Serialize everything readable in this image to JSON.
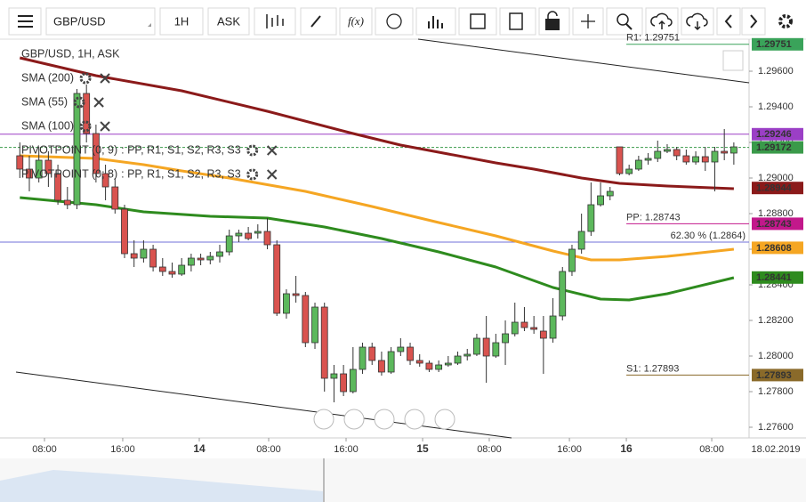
{
  "toolbar": {
    "symbol": "GBP/USD",
    "timeframe": "1H",
    "price_type": "ASK",
    "function": "f(x)"
  },
  "chart_data": {
    "type": "candlestick",
    "title": "GBP/USD, 1H, ASK",
    "open": [
      1.29125,
      1.2905,
      1.29,
      1.291,
      1.29025,
      1.28875,
      1.2885,
      1.29475,
      1.2925,
      1.29025,
      1.2895,
      1.28825,
      1.28575,
      1.2855,
      1.286,
      1.285,
      1.28475,
      1.2846,
      1.2851,
      1.2855,
      1.2854,
      1.2856,
      1.28585,
      1.28675,
      1.2869,
      1.2869,
      1.287,
      1.28625,
      1.2824,
      1.2835,
      1.2834,
      1.28075,
      1.28275,
      1.27875,
      1.279,
      1.278,
      1.27925,
      1.2805,
      1.27975,
      1.2791,
      1.28025,
      1.2805,
      1.27975,
      1.2796,
      1.27925,
      1.2795,
      1.2796,
      1.28,
      1.2801,
      1.281,
      1.28,
      1.28075,
      1.28125,
      1.2819,
      1.2816,
      1.2814,
      1.281,
      1.28225,
      1.28475,
      1.286,
      1.287,
      1.2885,
      1.289,
      1.29175,
      1.29025,
      1.2905,
      1.291,
      1.2911,
      1.2915,
      1.2916,
      1.29125,
      1.2909,
      1.2912,
      1.2909,
      1.2915,
      1.2914
    ],
    "high": [
      1.292,
      1.29125,
      1.29175,
      1.2915,
      1.29075,
      1.2895,
      1.295,
      1.29525,
      1.293,
      1.29075,
      1.29,
      1.2885,
      1.2865,
      1.2865,
      1.28625,
      1.2855,
      1.28525,
      1.2855,
      1.28575,
      1.28575,
      1.28585,
      1.28625,
      1.2871,
      1.2871,
      1.28725,
      1.2874,
      1.28775,
      1.2865,
      1.28375,
      1.2845,
      1.2836,
      1.283,
      1.283,
      1.2795,
      1.2795,
      1.2805,
      1.28075,
      1.28075,
      1.28025,
      1.2805,
      1.281,
      1.28075,
      1.2801,
      1.27975,
      1.27975,
      1.28,
      1.28025,
      1.2804,
      1.28125,
      1.28225,
      1.28125,
      1.282,
      1.283,
      1.28275,
      1.28225,
      1.28225,
      1.28325,
      1.285,
      1.28625,
      1.288,
      1.28975,
      1.28975,
      1.2895,
      1.29175,
      1.29075,
      1.29125,
      1.2914,
      1.2921,
      1.2919,
      1.29175,
      1.2916,
      1.2915,
      1.29175,
      1.29175,
      1.29275,
      1.292
    ],
    "low": [
      1.29,
      1.28925,
      1.28975,
      1.2895,
      1.2885,
      1.28825,
      1.28825,
      1.292,
      1.28975,
      1.28875,
      1.288,
      1.2855,
      1.285,
      1.28525,
      1.28475,
      1.2845,
      1.2844,
      1.2845,
      1.28475,
      1.2851,
      1.28515,
      1.28525,
      1.28565,
      1.2864,
      1.2865,
      1.2866,
      1.286,
      1.28225,
      1.2821,
      1.283,
      1.2805,
      1.2804,
      1.278,
      1.2774,
      1.27775,
      1.2779,
      1.279,
      1.2795,
      1.2789,
      1.279,
      1.28,
      1.2795,
      1.2794,
      1.2791,
      1.2791,
      1.2794,
      1.2795,
      1.27975,
      1.28,
      1.2785,
      1.2799,
      1.2795,
      1.2811,
      1.2814,
      1.28125,
      1.279,
      1.28075,
      1.282,
      1.2845,
      1.28575,
      1.28675,
      1.2884,
      1.28875,
      1.29015,
      1.29015,
      1.2904,
      1.29075,
      1.2909,
      1.2914,
      1.291,
      1.29075,
      1.29075,
      1.2904,
      1.28925,
      1.291,
      1.29075
    ],
    "close": [
      1.2905,
      1.29,
      1.291,
      1.29025,
      1.28875,
      1.2885,
      1.29475,
      1.2925,
      1.29025,
      1.2895,
      1.28825,
      1.28575,
      1.2855,
      1.286,
      1.285,
      1.28475,
      1.2846,
      1.2851,
      1.2855,
      1.2854,
      1.2856,
      1.28585,
      1.28675,
      1.2869,
      1.2866,
      1.287,
      1.28625,
      1.2824,
      1.2835,
      1.2834,
      1.28075,
      1.28275,
      1.27875,
      1.279,
      1.278,
      1.27925,
      1.2805,
      1.27975,
      1.2791,
      1.28025,
      1.2805,
      1.27975,
      1.2796,
      1.27925,
      1.2795,
      1.2796,
      1.28,
      1.2801,
      1.281,
      1.28,
      1.28075,
      1.28125,
      1.2819,
      1.2816,
      1.2815,
      1.281,
      1.28225,
      1.28475,
      1.286,
      1.287,
      1.2885,
      1.289,
      1.28925,
      1.29025,
      1.2905,
      1.291,
      1.2911,
      1.2915,
      1.2916,
      1.29125,
      1.2909,
      1.2912,
      1.2909,
      1.2915,
      1.2914,
      1.29175
    ],
    "up_color": "#5cb85c",
    "down_color": "#d9534f",
    "xlim": [
      -0.4,
      76.6
    ],
    "xticks": [
      {
        "value": 2.59,
        "label": "08:00"
      },
      {
        "value": 10.81,
        "label": "16:00"
      },
      {
        "value": 18.85,
        "label": "14"
      },
      {
        "value": 26.14,
        "label": "08:00"
      },
      {
        "value": 34.27,
        "label": "16:00"
      },
      {
        "value": 42.31,
        "label": "15"
      },
      {
        "value": 49.31,
        "label": "08:00"
      },
      {
        "value": 57.73,
        "label": "16:00"
      },
      {
        "value": 63.71,
        "label": "16"
      },
      {
        "value": 72.68,
        "label": "08:00"
      }
    ],
    "date_label": "18.02.2019",
    "ylim": [
      1.2755,
      1.298
    ],
    "yticks": [
      {
        "value": 1.276,
        "label": "1.27600"
      },
      {
        "value": 1.278,
        "label": "1.27800"
      },
      {
        "value": 1.28,
        "label": "1.28000"
      },
      {
        "value": 1.282,
        "label": "1.28200"
      },
      {
        "value": 1.284,
        "label": "1.28400"
      },
      {
        "value": 1.286,
        "label": "1.28600"
      },
      {
        "value": 1.288,
        "label": "1.28800"
      },
      {
        "value": 1.29,
        "label": "1.29000"
      },
      {
        "value": 1.292,
        "label": "1.29200"
      },
      {
        "value": 1.294,
        "label": "1.29400"
      },
      {
        "value": 1.296,
        "label": "1.29600"
      }
    ],
    "lines": [
      {
        "name": "SMA (200)",
        "color": "#8b1a1a",
        "x": [
          0,
          8,
          17,
          26,
          35,
          40,
          45,
          50,
          54,
          59,
          63,
          68,
          75
        ],
        "values": [
          1.29675,
          1.29575,
          1.2949,
          1.29375,
          1.2925,
          1.29185,
          1.29135,
          1.29085,
          1.2905,
          1.29,
          1.2897,
          1.28955,
          1.2894
        ]
      },
      {
        "name": "SMA (55)",
        "color": "#2e8b1e",
        "x": [
          0,
          8,
          13,
          20,
          26,
          32,
          38,
          44,
          50,
          56,
          61,
          64,
          68,
          75
        ],
        "values": [
          1.2889,
          1.2885,
          1.2881,
          1.28785,
          1.28775,
          1.28725,
          1.2866,
          1.28585,
          1.285,
          1.28385,
          1.2832,
          1.28315,
          1.2835,
          1.2844
        ]
      },
      {
        "name": "SMA (100)",
        "color": "#f5a623",
        "x": [
          0,
          8,
          13,
          17,
          22,
          30,
          37,
          44,
          50,
          56,
          60,
          63,
          68,
          75
        ],
        "values": [
          1.29125,
          1.2911,
          1.29075,
          1.2904,
          1.29,
          1.28925,
          1.2884,
          1.2875,
          1.28675,
          1.2859,
          1.2854,
          1.2854,
          1.2856,
          1.286
        ]
      }
    ],
    "indicators": [
      {
        "name": "PIVOTPOINT (0; 9)",
        "items": ": PP, R1, S1, S2, R3, S3",
        "color": "#b03ab0"
      },
      {
        "name": "PIVOTPOINT (0; 8)",
        "items": ": PP, R1, S1, S2, R3, S3",
        "color": "#b03ab0"
      }
    ],
    "levels": [
      {
        "label": "R1: 1.29751",
        "value": 1.29751,
        "color": "#3aa35a",
        "start_x": 63.71
      },
      {
        "label": "PP: 1.28743",
        "value": 1.28743,
        "color": "#c2188b",
        "start_x": 63.71
      },
      {
        "label": "S1: 1.27893",
        "value": 1.27893,
        "color": "#8a6a2a",
        "start_x": 63.71
      },
      {
        "value": 1.29246,
        "color": "#9b3fc6"
      },
      {
        "label": "62.30 % (1.2864)",
        "value": 1.2864,
        "color": "#7070d8"
      }
    ],
    "current": {
      "value": 1.29172,
      "color": "#3a9a4a"
    },
    "price_tags": [
      {
        "value": 1.29751,
        "color": "#3aa35a"
      },
      {
        "value": 1.29246,
        "color": "#9b3fc6"
      },
      {
        "value": 1.29172,
        "color": "#3a9a4a"
      },
      {
        "value": 1.28944,
        "color": "#8b1a1a"
      },
      {
        "value": 1.28743,
        "color": "#c2188b"
      },
      {
        "value": 1.28608,
        "color": "#f5a623"
      },
      {
        "value": 1.28441,
        "color": "#2e8b1e"
      },
      {
        "value": 1.27893,
        "color": "#8a6a2a"
      }
    ]
  }
}
